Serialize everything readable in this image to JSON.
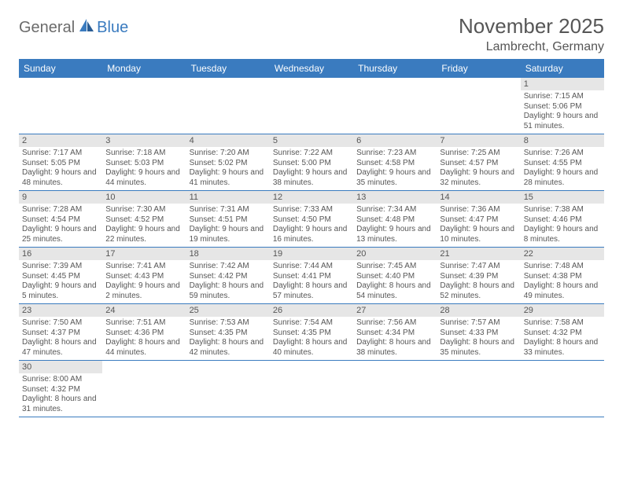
{
  "logo": {
    "word1": "General",
    "word2": "Blue"
  },
  "title": "November 2025",
  "location": "Lambrecht, Germany",
  "colors": {
    "header_bg": "#3a7bbf",
    "header_text": "#ffffff",
    "daynum_bg": "#e6e6e6",
    "border": "#3a7bbf",
    "text": "#565656",
    "logo_gray": "#6b6b6b",
    "logo_blue": "#3a7bbf",
    "page_bg": "#ffffff"
  },
  "typography": {
    "title_fontsize": 26,
    "location_fontsize": 16,
    "header_fontsize": 12,
    "daynum_fontsize": 11,
    "content_fontsize": 10
  },
  "day_headers": [
    "Sunday",
    "Monday",
    "Tuesday",
    "Wednesday",
    "Thursday",
    "Friday",
    "Saturday"
  ],
  "weeks": [
    [
      null,
      null,
      null,
      null,
      null,
      null,
      {
        "n": "1",
        "sr": "Sunrise: 7:15 AM",
        "ss": "Sunset: 5:06 PM",
        "dl": "Daylight: 9 hours and 51 minutes."
      }
    ],
    [
      {
        "n": "2",
        "sr": "Sunrise: 7:17 AM",
        "ss": "Sunset: 5:05 PM",
        "dl": "Daylight: 9 hours and 48 minutes."
      },
      {
        "n": "3",
        "sr": "Sunrise: 7:18 AM",
        "ss": "Sunset: 5:03 PM",
        "dl": "Daylight: 9 hours and 44 minutes."
      },
      {
        "n": "4",
        "sr": "Sunrise: 7:20 AM",
        "ss": "Sunset: 5:02 PM",
        "dl": "Daylight: 9 hours and 41 minutes."
      },
      {
        "n": "5",
        "sr": "Sunrise: 7:22 AM",
        "ss": "Sunset: 5:00 PM",
        "dl": "Daylight: 9 hours and 38 minutes."
      },
      {
        "n": "6",
        "sr": "Sunrise: 7:23 AM",
        "ss": "Sunset: 4:58 PM",
        "dl": "Daylight: 9 hours and 35 minutes."
      },
      {
        "n": "7",
        "sr": "Sunrise: 7:25 AM",
        "ss": "Sunset: 4:57 PM",
        "dl": "Daylight: 9 hours and 32 minutes."
      },
      {
        "n": "8",
        "sr": "Sunrise: 7:26 AM",
        "ss": "Sunset: 4:55 PM",
        "dl": "Daylight: 9 hours and 28 minutes."
      }
    ],
    [
      {
        "n": "9",
        "sr": "Sunrise: 7:28 AM",
        "ss": "Sunset: 4:54 PM",
        "dl": "Daylight: 9 hours and 25 minutes."
      },
      {
        "n": "10",
        "sr": "Sunrise: 7:30 AM",
        "ss": "Sunset: 4:52 PM",
        "dl": "Daylight: 9 hours and 22 minutes."
      },
      {
        "n": "11",
        "sr": "Sunrise: 7:31 AM",
        "ss": "Sunset: 4:51 PM",
        "dl": "Daylight: 9 hours and 19 minutes."
      },
      {
        "n": "12",
        "sr": "Sunrise: 7:33 AM",
        "ss": "Sunset: 4:50 PM",
        "dl": "Daylight: 9 hours and 16 minutes."
      },
      {
        "n": "13",
        "sr": "Sunrise: 7:34 AM",
        "ss": "Sunset: 4:48 PM",
        "dl": "Daylight: 9 hours and 13 minutes."
      },
      {
        "n": "14",
        "sr": "Sunrise: 7:36 AM",
        "ss": "Sunset: 4:47 PM",
        "dl": "Daylight: 9 hours and 10 minutes."
      },
      {
        "n": "15",
        "sr": "Sunrise: 7:38 AM",
        "ss": "Sunset: 4:46 PM",
        "dl": "Daylight: 9 hours and 8 minutes."
      }
    ],
    [
      {
        "n": "16",
        "sr": "Sunrise: 7:39 AM",
        "ss": "Sunset: 4:45 PM",
        "dl": "Daylight: 9 hours and 5 minutes."
      },
      {
        "n": "17",
        "sr": "Sunrise: 7:41 AM",
        "ss": "Sunset: 4:43 PM",
        "dl": "Daylight: 9 hours and 2 minutes."
      },
      {
        "n": "18",
        "sr": "Sunrise: 7:42 AM",
        "ss": "Sunset: 4:42 PM",
        "dl": "Daylight: 8 hours and 59 minutes."
      },
      {
        "n": "19",
        "sr": "Sunrise: 7:44 AM",
        "ss": "Sunset: 4:41 PM",
        "dl": "Daylight: 8 hours and 57 minutes."
      },
      {
        "n": "20",
        "sr": "Sunrise: 7:45 AM",
        "ss": "Sunset: 4:40 PM",
        "dl": "Daylight: 8 hours and 54 minutes."
      },
      {
        "n": "21",
        "sr": "Sunrise: 7:47 AM",
        "ss": "Sunset: 4:39 PM",
        "dl": "Daylight: 8 hours and 52 minutes."
      },
      {
        "n": "22",
        "sr": "Sunrise: 7:48 AM",
        "ss": "Sunset: 4:38 PM",
        "dl": "Daylight: 8 hours and 49 minutes."
      }
    ],
    [
      {
        "n": "23",
        "sr": "Sunrise: 7:50 AM",
        "ss": "Sunset: 4:37 PM",
        "dl": "Daylight: 8 hours and 47 minutes."
      },
      {
        "n": "24",
        "sr": "Sunrise: 7:51 AM",
        "ss": "Sunset: 4:36 PM",
        "dl": "Daylight: 8 hours and 44 minutes."
      },
      {
        "n": "25",
        "sr": "Sunrise: 7:53 AM",
        "ss": "Sunset: 4:35 PM",
        "dl": "Daylight: 8 hours and 42 minutes."
      },
      {
        "n": "26",
        "sr": "Sunrise: 7:54 AM",
        "ss": "Sunset: 4:35 PM",
        "dl": "Daylight: 8 hours and 40 minutes."
      },
      {
        "n": "27",
        "sr": "Sunrise: 7:56 AM",
        "ss": "Sunset: 4:34 PM",
        "dl": "Daylight: 8 hours and 38 minutes."
      },
      {
        "n": "28",
        "sr": "Sunrise: 7:57 AM",
        "ss": "Sunset: 4:33 PM",
        "dl": "Daylight: 8 hours and 35 minutes."
      },
      {
        "n": "29",
        "sr": "Sunrise: 7:58 AM",
        "ss": "Sunset: 4:32 PM",
        "dl": "Daylight: 8 hours and 33 minutes."
      }
    ],
    [
      {
        "n": "30",
        "sr": "Sunrise: 8:00 AM",
        "ss": "Sunset: 4:32 PM",
        "dl": "Daylight: 8 hours and 31 minutes."
      },
      null,
      null,
      null,
      null,
      null,
      null
    ]
  ]
}
